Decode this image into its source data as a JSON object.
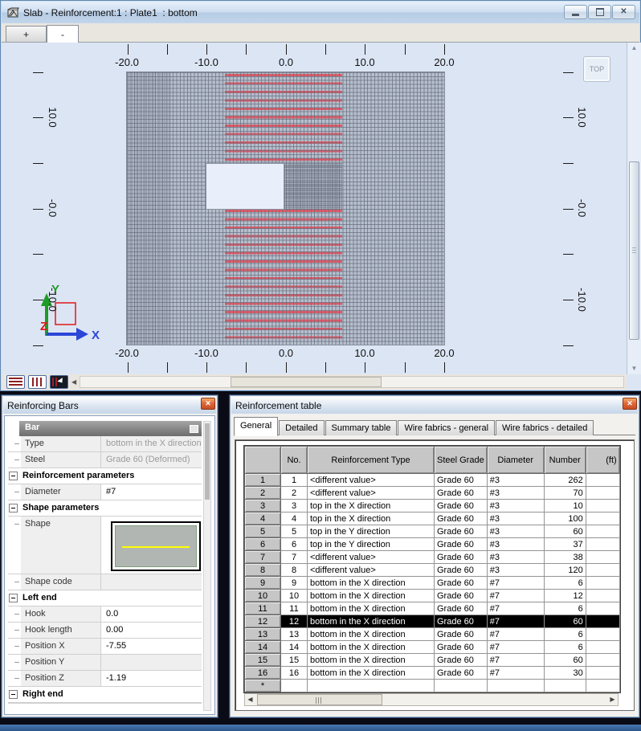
{
  "colors": {
    "accent_red": "#e05a66",
    "mesh_fill": "#b6bfcd",
    "selection_bg": "#000000",
    "view_bg": "#dce5f4",
    "header_gray": "#c6c6c6"
  },
  "window": {
    "title": "Slab - Reinforcement:1 : Plate1  : bottom",
    "controls": {
      "minimize": "minimize",
      "restore": "restore",
      "close": "x"
    },
    "view_tabs": [
      {
        "label": "+",
        "active": false
      },
      {
        "label": "-",
        "active": true
      }
    ]
  },
  "viewport": {
    "x_axis_labels": [
      "-20.0",
      "-10.0",
      "0.0",
      "10.0",
      "20.0"
    ],
    "y_axis_labels": [
      "10.0",
      "-0.0",
      "-10.0"
    ],
    "top_view_button": "TOP",
    "triad": {
      "x": "X",
      "y": "Y",
      "z": "Z"
    }
  },
  "reinforcing_bars_panel": {
    "title": "Reinforcing Bars",
    "rows": [
      {
        "kind": "header",
        "label": "Bar"
      },
      {
        "kind": "prop",
        "label": "Type",
        "value": "bottom in the X direction",
        "readonly": true
      },
      {
        "kind": "prop",
        "label": "Steel",
        "value": "Grade 60 (Deformed)",
        "readonly": true
      },
      {
        "kind": "group",
        "label": "Reinforcement parameters"
      },
      {
        "kind": "prop",
        "label": "Diameter",
        "value": "#7",
        "readonly": false
      },
      {
        "kind": "group",
        "label": "Shape parameters"
      },
      {
        "kind": "shape",
        "label": "Shape"
      },
      {
        "kind": "prop",
        "label": "Shape code",
        "value": "",
        "readonly": true
      },
      {
        "kind": "group",
        "label": "Left end"
      },
      {
        "kind": "prop",
        "label": "Hook",
        "value": "0.0",
        "readonly": false
      },
      {
        "kind": "prop",
        "label": "Hook length",
        "value": "0.00",
        "readonly": false
      },
      {
        "kind": "prop",
        "label": "Position X",
        "value": "-7.55",
        "readonly": false
      },
      {
        "kind": "prop",
        "label": "Position Y",
        "value": "",
        "readonly": true
      },
      {
        "kind": "prop",
        "label": "Position Z",
        "value": "-1.19",
        "readonly": false
      },
      {
        "kind": "group",
        "label": "Right end"
      }
    ]
  },
  "reinforcement_table_panel": {
    "title": "Reinforcement table",
    "tabs": [
      {
        "label": "General",
        "active": true
      },
      {
        "label": "Detailed",
        "active": false
      },
      {
        "label": "Summary table",
        "active": false
      },
      {
        "label": "Wire fabrics - general",
        "active": false
      },
      {
        "label": "Wire fabrics - detailed",
        "active": false
      }
    ],
    "columns": [
      "",
      "No.",
      "Reinforcement Type",
      "Steel Grade",
      "Diameter",
      "Number",
      "(ft)"
    ],
    "rows": [
      {
        "no": "1",
        "type": "<different value>",
        "grade": "Grade 60",
        "diameter": "#3",
        "number": "262",
        "ft": ""
      },
      {
        "no": "2",
        "type": "<different value>",
        "grade": "Grade 60",
        "diameter": "#3",
        "number": "70",
        "ft": ""
      },
      {
        "no": "3",
        "type": "top in the X direction",
        "grade": "Grade 60",
        "diameter": "#3",
        "number": "10",
        "ft": ""
      },
      {
        "no": "4",
        "type": "top in the X direction",
        "grade": "Grade 60",
        "diameter": "#3",
        "number": "100",
        "ft": ""
      },
      {
        "no": "5",
        "type": "top in the Y direction",
        "grade": "Grade 60",
        "diameter": "#3",
        "number": "60",
        "ft": ""
      },
      {
        "no": "6",
        "type": "top in the Y direction",
        "grade": "Grade 60",
        "diameter": "#3",
        "number": "37",
        "ft": ""
      },
      {
        "no": "7",
        "type": "<different value>",
        "grade": "Grade 60",
        "diameter": "#3",
        "number": "38",
        "ft": ""
      },
      {
        "no": "8",
        "type": "<different value>",
        "grade": "Grade 60",
        "diameter": "#3",
        "number": "120",
        "ft": ""
      },
      {
        "no": "9",
        "type": "bottom in the X direction",
        "grade": "Grade 60",
        "diameter": "#7",
        "number": "6",
        "ft": ""
      },
      {
        "no": "10",
        "type": "bottom in the X direction",
        "grade": "Grade 60",
        "diameter": "#7",
        "number": "12",
        "ft": ""
      },
      {
        "no": "11",
        "type": "bottom in the X direction",
        "grade": "Grade 60",
        "diameter": "#7",
        "number": "6",
        "ft": ""
      },
      {
        "no": "12",
        "type": "bottom in the X direction",
        "grade": "Grade 60",
        "diameter": "#7",
        "number": "60",
        "ft": ""
      },
      {
        "no": "13",
        "type": "bottom in the X direction",
        "grade": "Grade 60",
        "diameter": "#7",
        "number": "6",
        "ft": ""
      },
      {
        "no": "14",
        "type": "bottom in the X direction",
        "grade": "Grade 60",
        "diameter": "#7",
        "number": "6",
        "ft": ""
      },
      {
        "no": "15",
        "type": "bottom in the X direction",
        "grade": "Grade 60",
        "diameter": "#7",
        "number": "60",
        "ft": ""
      },
      {
        "no": "16",
        "type": "bottom in the X direction",
        "grade": "Grade 60",
        "diameter": "#7",
        "number": "30",
        "ft": ""
      }
    ],
    "selected_no": "12",
    "new_row_marker": "*"
  }
}
